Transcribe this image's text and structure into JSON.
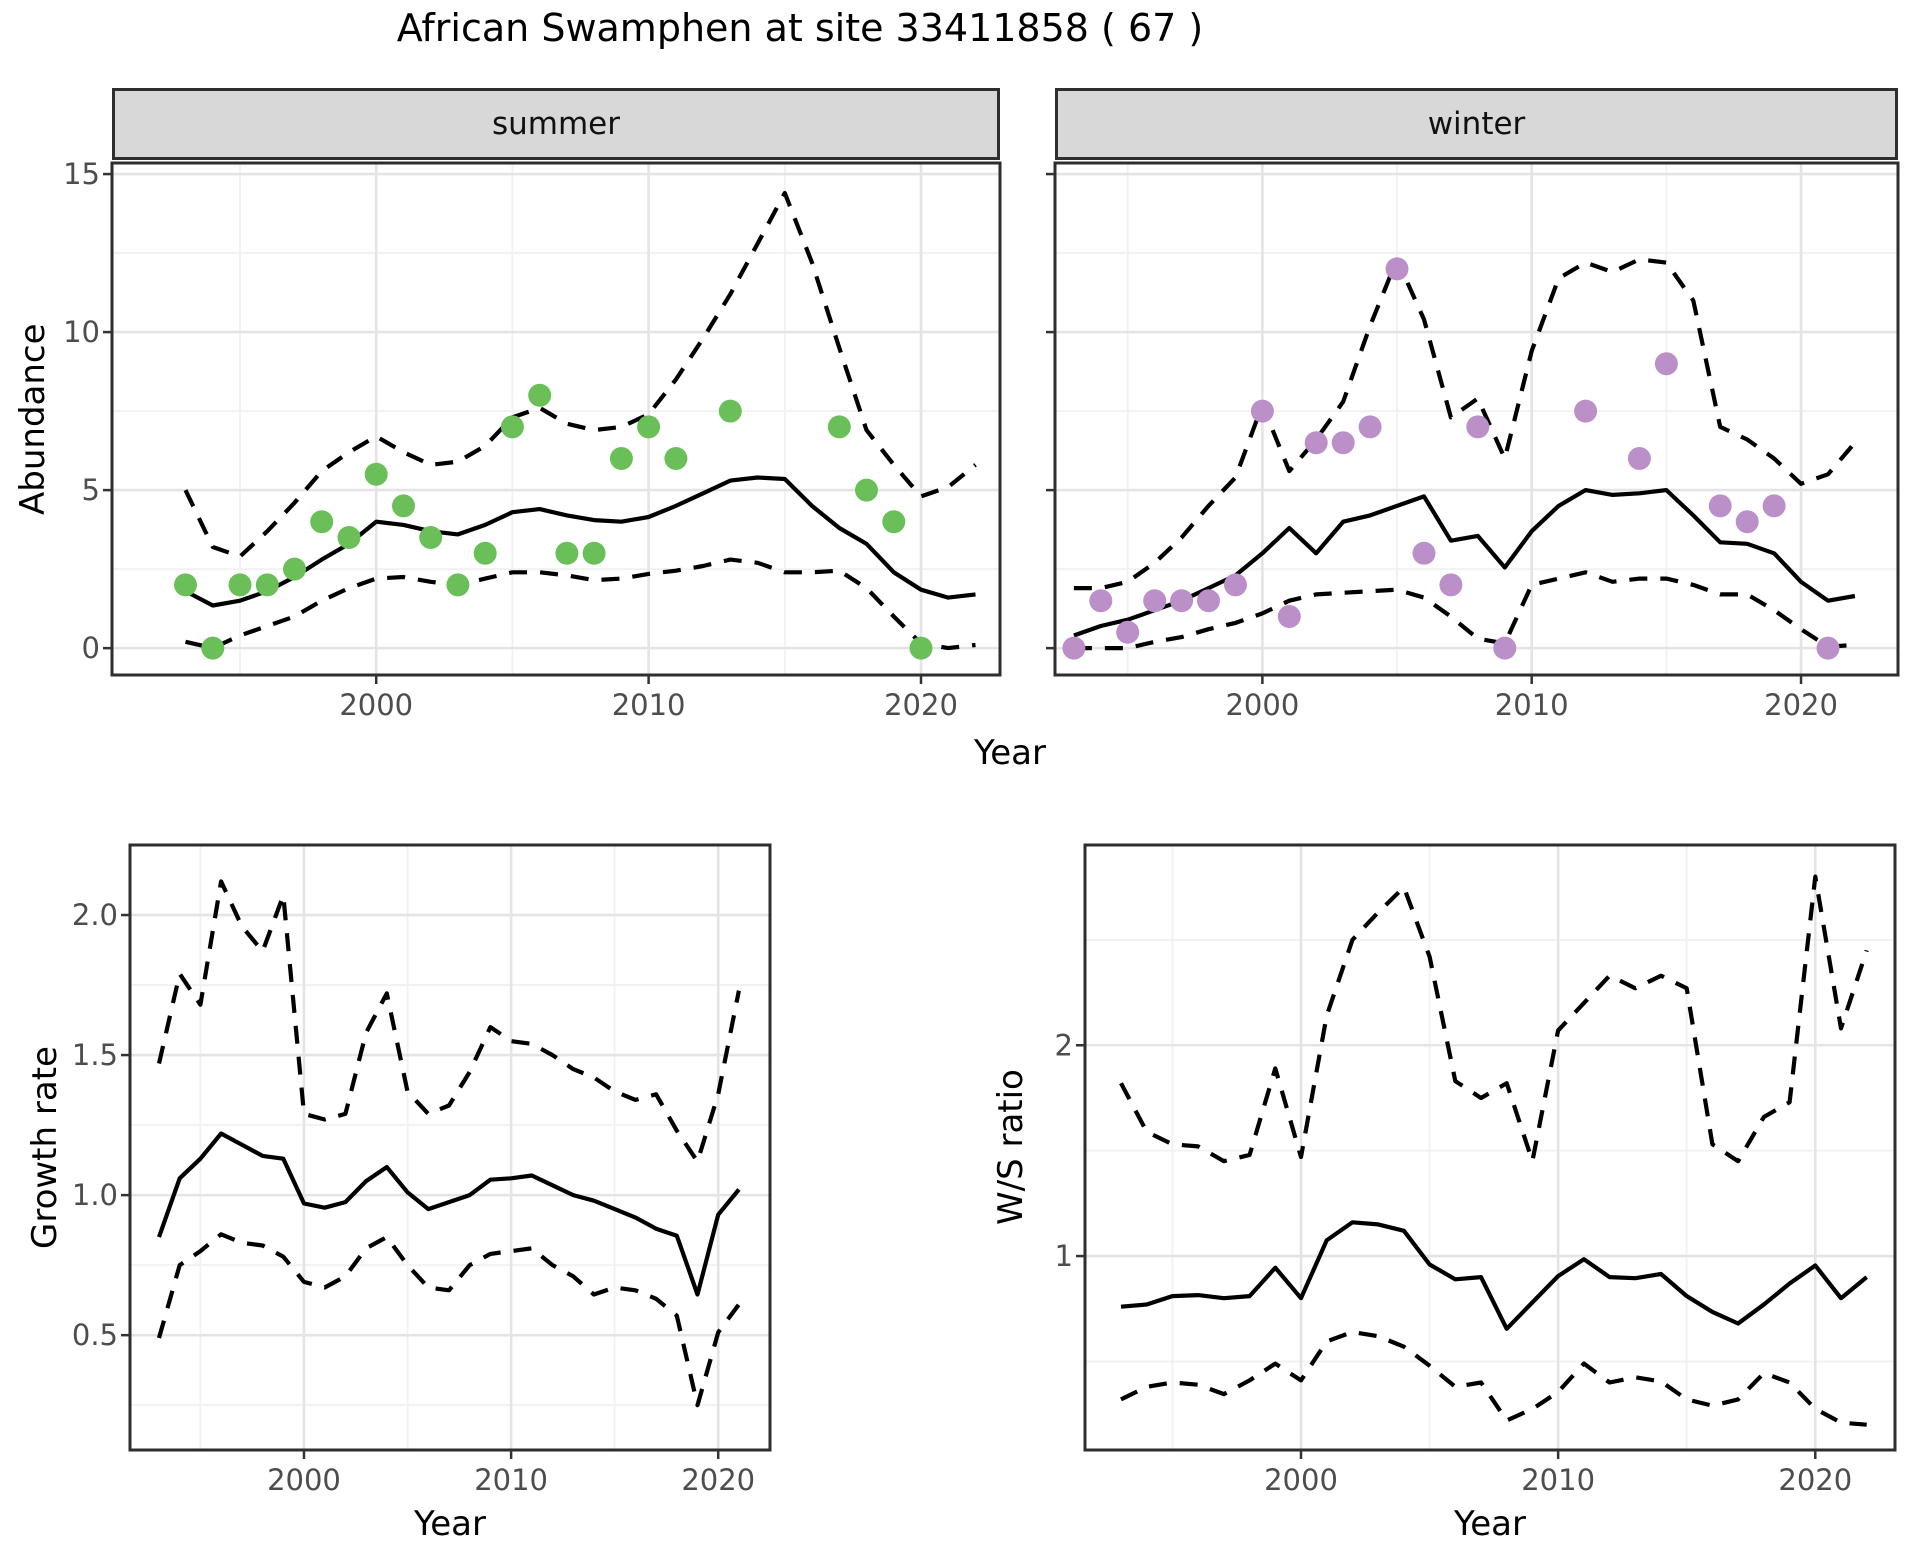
{
  "title": "African Swamphen at site 33411858 ( 67 )",
  "axis": {
    "x_label": "Year"
  },
  "colors": {
    "summer_point": "#6abf59",
    "winter_point": "#bb90c8",
    "line": "#000000",
    "grid_major": "#e4e4e4",
    "grid_minor": "#f1f1f1",
    "strip_bg": "#d8d8d8",
    "panel_border": "#2e2e2e",
    "tick_label": "#4d4d4d"
  },
  "chart_data": [
    {
      "id": "abundance_summer",
      "type": "line",
      "facet_label": "summer",
      "ylabel": "Abundance",
      "xlabel": "Year",
      "xlim": [
        1990.3,
        2022.9
      ],
      "ylim": [
        -0.85,
        15.35
      ],
      "xticks": [
        2000,
        2010,
        2020
      ],
      "xticks_minor": [
        1995,
        2005,
        2015
      ],
      "yticks": [
        0,
        5,
        10,
        15
      ],
      "yticklabels": [
        "0",
        "5",
        "10",
        "15"
      ],
      "yticks_minor": [
        2.5,
        7.5,
        12.5
      ],
      "points": {
        "color": "#6abf59",
        "x": [
          1993,
          1994,
          1995,
          1996,
          1997,
          1998,
          1999,
          2000,
          2001,
          2002,
          2003,
          2004,
          2005,
          2006,
          2007,
          2008,
          2009,
          2010,
          2011,
          2013,
          2017,
          2018,
          2019,
          2020
        ],
        "y": [
          2,
          0,
          2,
          2,
          2.5,
          4,
          3.5,
          5.5,
          4.5,
          3.5,
          2,
          3,
          7,
          8,
          3,
          3,
          6,
          7,
          6,
          7.5,
          7,
          5,
          4,
          0
        ]
      },
      "series": [
        {
          "name": "mean",
          "style": "solid",
          "x": [
            1993,
            1994,
            1995,
            1996,
            1997,
            1998,
            1999,
            2000,
            2001,
            2002,
            2003,
            2004,
            2005,
            2006,
            2007,
            2008,
            2009,
            2010,
            2011,
            2012,
            2013,
            2014,
            2015,
            2016,
            2017,
            2018,
            2019,
            2020,
            2021,
            2022
          ],
          "y": [
            1.8,
            1.35,
            1.5,
            1.8,
            2.25,
            2.8,
            3.3,
            4.0,
            3.9,
            3.7,
            3.6,
            3.9,
            4.3,
            4.4,
            4.2,
            4.05,
            4.0,
            4.15,
            4.5,
            4.9,
            5.3,
            5.4,
            5.35,
            4.5,
            3.8,
            3.3,
            2.4,
            1.85,
            1.6,
            1.7
          ]
        },
        {
          "name": "upper_ci",
          "style": "dashed",
          "x": [
            1993,
            1994,
            1995,
            1996,
            1997,
            1998,
            1999,
            2000,
            2001,
            2002,
            2003,
            2004,
            2005,
            2006,
            2007,
            2008,
            2009,
            2010,
            2011,
            2012,
            2013,
            2014,
            2015,
            2016,
            2017,
            2018,
            2019,
            2020,
            2021,
            2022
          ],
          "y": [
            5.0,
            3.2,
            2.9,
            3.7,
            4.6,
            5.6,
            6.2,
            6.7,
            6.2,
            5.8,
            5.9,
            6.4,
            7.3,
            7.6,
            7.1,
            6.9,
            7.0,
            7.4,
            8.5,
            9.8,
            11.2,
            12.8,
            14.4,
            12.2,
            9.5,
            6.9,
            5.8,
            4.8,
            5.1,
            5.8
          ]
        },
        {
          "name": "lower_ci",
          "style": "dashed",
          "x": [
            1993,
            1994,
            1995,
            1996,
            1997,
            1998,
            1999,
            2000,
            2001,
            2002,
            2003,
            2004,
            2005,
            2006,
            2007,
            2008,
            2009,
            2010,
            2011,
            2012,
            2013,
            2014,
            2015,
            2016,
            2017,
            2018,
            2019,
            2020,
            2021,
            2022
          ],
          "y": [
            0.2,
            0.0,
            0.4,
            0.7,
            1.0,
            1.5,
            1.9,
            2.2,
            2.25,
            2.1,
            2.0,
            2.2,
            2.4,
            2.4,
            2.3,
            2.15,
            2.2,
            2.35,
            2.45,
            2.6,
            2.8,
            2.7,
            2.4,
            2.4,
            2.45,
            1.9,
            1.0,
            0.15,
            0.0,
            0.1
          ]
        }
      ]
    },
    {
      "id": "abundance_winter",
      "type": "line",
      "facet_label": "winter",
      "ylabel": "Abundance",
      "xlabel": "Year",
      "xlim": [
        1992.3,
        2023.6
      ],
      "ylim": [
        -0.85,
        15.35
      ],
      "xticks": [
        2000,
        2010,
        2020
      ],
      "xticks_minor": [
        1995,
        2005,
        2015
      ],
      "yticks": [
        0,
        5,
        10,
        15
      ],
      "yticklabels": [
        "0",
        "5",
        "10",
        "15"
      ],
      "yticks_minor": [
        2.5,
        7.5,
        12.5
      ],
      "points": {
        "color": "#bb90c8",
        "x": [
          1993,
          1994,
          1995,
          1996,
          1997,
          1998,
          1999,
          2000,
          2001,
          2002,
          2003,
          2004,
          2005,
          2006,
          2007,
          2008,
          2009,
          2012,
          2014,
          2015,
          2017,
          2018,
          2019,
          2021
        ],
        "y": [
          0,
          1.5,
          0.5,
          1.5,
          1.5,
          1.5,
          2,
          7.5,
          1,
          6.5,
          6.5,
          7,
          12,
          3,
          2,
          7,
          0,
          7.5,
          6,
          9,
          4.5,
          4,
          4.5,
          0
        ]
      },
      "series": [
        {
          "name": "mean",
          "style": "solid",
          "x": [
            1993,
            1994,
            1995,
            1996,
            1997,
            1998,
            1999,
            2000,
            2001,
            2002,
            2003,
            2004,
            2005,
            2006,
            2007,
            2008,
            2009,
            2010,
            2011,
            2012,
            2013,
            2014,
            2015,
            2016,
            2017,
            2018,
            2019,
            2020,
            2021,
            2022
          ],
          "y": [
            0.4,
            0.7,
            0.9,
            1.2,
            1.5,
            1.9,
            2.3,
            3.0,
            3.8,
            3.0,
            4.0,
            4.2,
            4.5,
            4.8,
            3.4,
            3.55,
            2.55,
            3.7,
            4.5,
            5.0,
            4.85,
            4.9,
            5.0,
            4.2,
            3.35,
            3.3,
            3.0,
            2.1,
            1.5,
            1.65
          ]
        },
        {
          "name": "upper_ci",
          "style": "dashed",
          "x": [
            1993,
            1994,
            1995,
            1996,
            1997,
            1998,
            1999,
            2000,
            2001,
            2002,
            2003,
            2004,
            2005,
            2006,
            2007,
            2008,
            2009,
            2010,
            2011,
            2012,
            2013,
            2014,
            2015,
            2016,
            2017,
            2018,
            2019,
            2020,
            2021,
            2022
          ],
          "y": [
            1.9,
            1.9,
            2.1,
            2.7,
            3.5,
            4.5,
            5.4,
            7.7,
            5.6,
            6.6,
            7.8,
            10.2,
            12.3,
            10.4,
            7.3,
            7.9,
            6.0,
            9.4,
            11.7,
            12.2,
            11.9,
            12.3,
            12.2,
            11.0,
            7.0,
            6.6,
            6.0,
            5.2,
            5.5,
            6.5
          ]
        },
        {
          "name": "lower_ci",
          "style": "dashed",
          "x": [
            1993,
            1994,
            1995,
            1996,
            1997,
            1998,
            1999,
            2000,
            2001,
            2002,
            2003,
            2004,
            2005,
            2006,
            2007,
            2008,
            2009,
            2010,
            2011,
            2012,
            2013,
            2014,
            2015,
            2016,
            2017,
            2018,
            2019,
            2020,
            2021,
            2022
          ],
          "y": [
            0.0,
            0.0,
            0.0,
            0.2,
            0.35,
            0.6,
            0.8,
            1.1,
            1.5,
            1.7,
            1.75,
            1.8,
            1.85,
            1.6,
            1.0,
            0.3,
            0.15,
            2.0,
            2.2,
            2.4,
            2.1,
            2.2,
            2.2,
            2.0,
            1.7,
            1.7,
            1.2,
            0.6,
            0.05,
            0.1
          ]
        }
      ]
    },
    {
      "id": "growth_rate",
      "type": "line",
      "facet_label": "",
      "ylabel": "Growth rate",
      "xlabel": "Year",
      "xlim": [
        1991.6,
        2022.5
      ],
      "ylim": [
        0.09,
        2.25
      ],
      "xticks": [
        2000,
        2010,
        2020
      ],
      "xticks_minor": [
        1995,
        2005,
        2015
      ],
      "yticks": [
        0.5,
        1.0,
        1.5,
        2.0
      ],
      "yticklabels": [
        "0.5",
        "1.0",
        "1.5",
        "2.0"
      ],
      "yticks_minor": [
        0.25,
        0.75,
        1.25,
        1.75
      ],
      "points": null,
      "series": [
        {
          "name": "mean",
          "style": "solid",
          "x": [
            1993,
            1994,
            1995,
            1996,
            1997,
            1998,
            1999,
            2000,
            2001,
            2002,
            2003,
            2004,
            2005,
            2006,
            2007,
            2008,
            2009,
            2010,
            2011,
            2012,
            2013,
            2014,
            2015,
            2016,
            2017,
            2018,
            2019,
            2020,
            2021
          ],
          "y": [
            0.85,
            1.06,
            1.13,
            1.22,
            1.18,
            1.14,
            1.13,
            0.97,
            0.955,
            0.975,
            1.05,
            1.1,
            1.01,
            0.95,
            0.975,
            1.0,
            1.055,
            1.06,
            1.07,
            1.035,
            1.0,
            0.98,
            0.95,
            0.92,
            0.88,
            0.855,
            0.645,
            0.93,
            1.02
          ]
        },
        {
          "name": "upper_ci",
          "style": "dashed",
          "x": [
            1993,
            1994,
            1995,
            1996,
            1997,
            1998,
            1999,
            2000,
            2001,
            2002,
            2003,
            2004,
            2005,
            2006,
            2007,
            2008,
            2009,
            2010,
            2011,
            2012,
            2013,
            2014,
            2015,
            2016,
            2017,
            2018,
            2019,
            2020,
            2021
          ],
          "y": [
            1.47,
            1.79,
            1.68,
            2.12,
            1.96,
            1.87,
            2.07,
            1.29,
            1.27,
            1.29,
            1.58,
            1.72,
            1.37,
            1.29,
            1.32,
            1.44,
            1.6,
            1.55,
            1.54,
            1.5,
            1.45,
            1.42,
            1.37,
            1.34,
            1.36,
            1.23,
            1.12,
            1.36,
            1.73
          ]
        },
        {
          "name": "lower_ci",
          "style": "dashed",
          "x": [
            1993,
            1994,
            1995,
            1996,
            1997,
            1998,
            1999,
            2000,
            2001,
            2002,
            2003,
            2004,
            2005,
            2006,
            2007,
            2008,
            2009,
            2010,
            2011,
            2012,
            2013,
            2014,
            2015,
            2016,
            2017,
            2018,
            2019,
            2020,
            2021
          ],
          "y": [
            0.49,
            0.75,
            0.8,
            0.86,
            0.83,
            0.82,
            0.78,
            0.69,
            0.67,
            0.71,
            0.81,
            0.85,
            0.75,
            0.67,
            0.66,
            0.75,
            0.79,
            0.8,
            0.81,
            0.75,
            0.71,
            0.645,
            0.67,
            0.66,
            0.63,
            0.57,
            0.25,
            0.51,
            0.61
          ]
        }
      ]
    },
    {
      "id": "ws_ratio",
      "type": "line",
      "facet_label": "",
      "ylabel": "W/S ratio",
      "xlabel": "Year",
      "xlim": [
        1991.6,
        2023.1
      ],
      "ylim": [
        0.08,
        2.95
      ],
      "xticks": [
        2000,
        2010,
        2020
      ],
      "xticks_minor": [
        1995,
        2005,
        2015
      ],
      "yticks": [
        1,
        2
      ],
      "yticklabels": [
        "1",
        "2"
      ],
      "yticks_minor": [
        0.5,
        1.5,
        2.5
      ],
      "points": null,
      "series": [
        {
          "name": "mean",
          "style": "solid",
          "x": [
            1993,
            1994,
            1995,
            1996,
            1997,
            1998,
            1999,
            2000,
            2001,
            2002,
            2003,
            2004,
            2005,
            2006,
            2007,
            2008,
            2009,
            2010,
            2011,
            2012,
            2013,
            2014,
            2015,
            2016,
            2017,
            2018,
            2019,
            2020,
            2021,
            2022
          ],
          "y": [
            0.76,
            0.77,
            0.81,
            0.815,
            0.8,
            0.81,
            0.945,
            0.8,
            1.075,
            1.16,
            1.15,
            1.12,
            0.96,
            0.89,
            0.9,
            0.655,
            0.78,
            0.905,
            0.985,
            0.9,
            0.895,
            0.915,
            0.81,
            0.735,
            0.68,
            0.77,
            0.87,
            0.955,
            0.8,
            0.9
          ]
        },
        {
          "name": "upper_ci",
          "style": "dashed",
          "x": [
            1993,
            1994,
            1995,
            1996,
            1997,
            1998,
            1999,
            2000,
            2001,
            2002,
            2003,
            2004,
            2005,
            2006,
            2007,
            2008,
            2009,
            2010,
            2011,
            2012,
            2013,
            2014,
            2015,
            2016,
            2017,
            2018,
            2019,
            2020,
            2021,
            2022
          ],
          "y": [
            1.82,
            1.59,
            1.53,
            1.52,
            1.45,
            1.48,
            1.89,
            1.47,
            2.14,
            2.5,
            2.63,
            2.75,
            2.42,
            1.83,
            1.75,
            1.82,
            1.45,
            2.07,
            2.2,
            2.33,
            2.27,
            2.33,
            2.27,
            1.53,
            1.45,
            1.66,
            1.73,
            2.8,
            2.08,
            2.45
          ]
        },
        {
          "name": "lower_ci",
          "style": "dashed",
          "x": [
            1993,
            1994,
            1995,
            1996,
            1997,
            1998,
            1999,
            2000,
            2001,
            2002,
            2003,
            2004,
            2005,
            2006,
            2007,
            2008,
            2009,
            2010,
            2011,
            2012,
            2013,
            2014,
            2015,
            2016,
            2017,
            2018,
            2019,
            2020,
            2021,
            2022
          ],
          "y": [
            0.32,
            0.38,
            0.4,
            0.39,
            0.345,
            0.41,
            0.49,
            0.41,
            0.595,
            0.64,
            0.62,
            0.57,
            0.48,
            0.38,
            0.4,
            0.22,
            0.275,
            0.355,
            0.49,
            0.4,
            0.425,
            0.405,
            0.32,
            0.29,
            0.32,
            0.445,
            0.4,
            0.275,
            0.21,
            0.2
          ]
        }
      ]
    }
  ]
}
